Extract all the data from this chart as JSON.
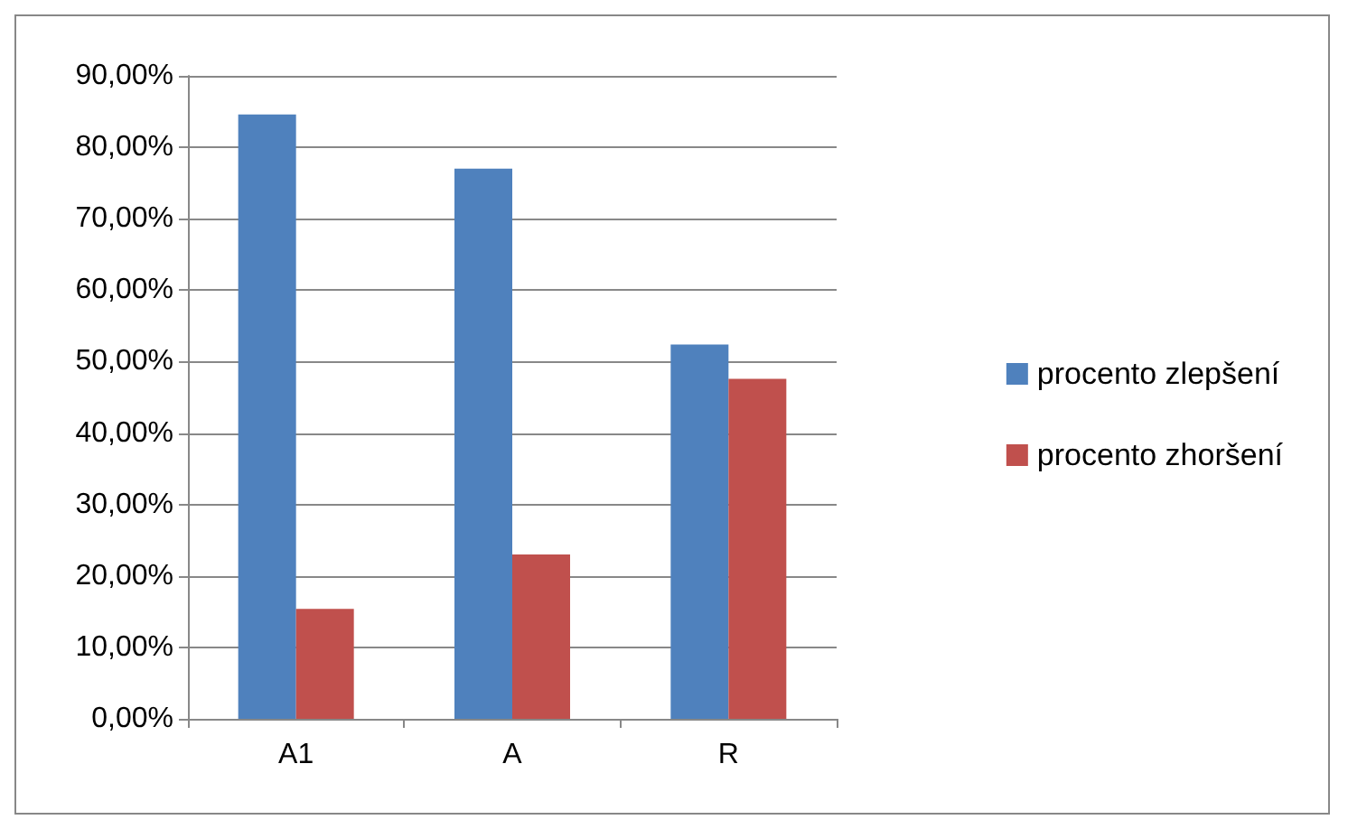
{
  "chart_data": {
    "type": "bar",
    "categories": [
      "A1",
      "A",
      "R"
    ],
    "series": [
      {
        "name": "procento zlepšení",
        "color": "#4f81bd",
        "values": [
          84.6,
          77.0,
          52.4
        ]
      },
      {
        "name": "procento zhoršení",
        "color": "#c0504d",
        "values": [
          15.4,
          23.0,
          47.6
        ]
      }
    ],
    "ylim": [
      0,
      90
    ],
    "yticks": [
      {
        "value": 0,
        "label": "0,00%"
      },
      {
        "value": 10,
        "label": "10,00%"
      },
      {
        "value": 20,
        "label": "20,00%"
      },
      {
        "value": 30,
        "label": "30,00%"
      },
      {
        "value": 40,
        "label": "40,00%"
      },
      {
        "value": 50,
        "label": "50,00%"
      },
      {
        "value": 60,
        "label": "60,00%"
      },
      {
        "value": 70,
        "label": "70,00%"
      },
      {
        "value": 80,
        "label": "80,00%"
      },
      {
        "value": 90,
        "label": "90,00%"
      }
    ],
    "grid": "y",
    "legend": "right"
  }
}
